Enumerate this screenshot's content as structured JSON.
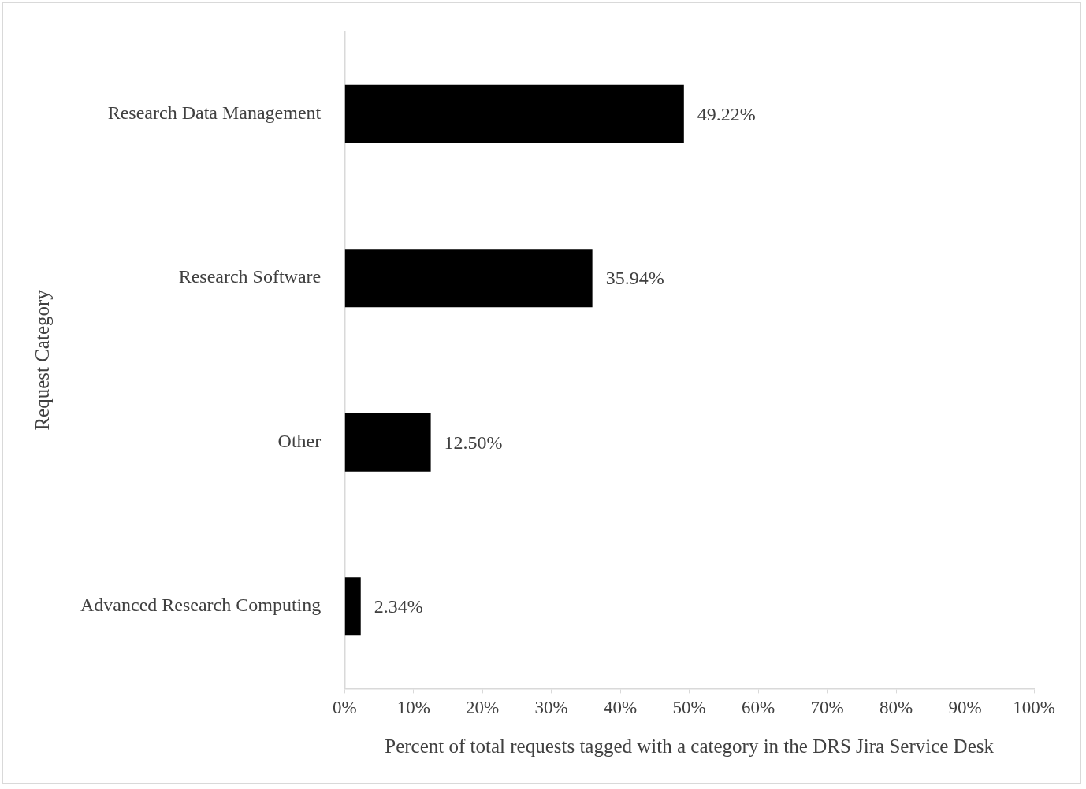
{
  "chart_data": {
    "type": "bar",
    "orientation": "horizontal",
    "x_label": "Percent of total requests tagged with a category in the DRS Jira Service Desk",
    "y_label": "Request Category",
    "categories": [
      "Research Data Management",
      "Research Software",
      "Other",
      "Advanced Research Computing"
    ],
    "values": [
      49.22,
      35.94,
      12.5,
      2.34
    ],
    "value_labels": [
      "49.22%",
      "35.94%",
      "12.50%",
      "2.34%"
    ],
    "color": "#000000",
    "xlim": [
      0,
      100
    ],
    "xticks": [
      {
        "value": 0,
        "label": "0%"
      },
      {
        "value": 10,
        "label": "10%"
      },
      {
        "value": 20,
        "label": "20%"
      },
      {
        "value": 30,
        "label": "30%"
      },
      {
        "value": 40,
        "label": "40%"
      },
      {
        "value": 50,
        "label": "50%"
      },
      {
        "value": 60,
        "label": "60%"
      },
      {
        "value": 70,
        "label": "70%"
      },
      {
        "value": 80,
        "label": "80%"
      },
      {
        "value": 90,
        "label": "90%"
      },
      {
        "value": 100,
        "label": "100%"
      }
    ],
    "grid": false,
    "data_labels": true
  }
}
